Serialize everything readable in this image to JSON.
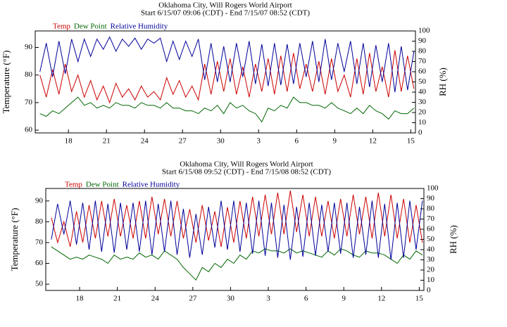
{
  "chart_data": [
    {
      "type": "line",
      "title": "Oklahoma City, Will Rogers World Airport",
      "subtitle": "Start 6/15/07 09:06 (CDT) - End 7/15/07 08:52 (CDT)",
      "ylabel": "Temperature (°F)",
      "y2label": "RH (%)",
      "x": [
        0.75,
        1.25,
        1.75,
        2.25,
        2.75,
        3.25,
        3.75,
        4.25,
        4.75,
        5.25,
        5.75,
        6.25,
        6.75,
        7.25,
        7.75,
        8.25,
        8.75,
        9.25,
        9.75,
        10.25,
        10.75,
        11.25,
        11.75,
        12.25,
        12.75,
        13.25,
        13.75,
        14.25,
        14.75,
        15.25,
        15.75,
        16.25,
        16.75,
        17.25,
        17.75,
        18.25,
        18.75,
        19.25,
        19.75,
        20.25,
        20.75,
        21.25,
        21.75,
        22.25,
        22.75,
        23.25,
        23.75,
        24.25,
        24.75,
        25.25,
        25.75,
        26.25,
        26.75,
        27.25,
        27.75,
        28.25,
        28.75,
        29.25,
        29.75,
        30.25
      ],
      "xlim": [
        0.38,
        30.37
      ],
      "xticks": [
        {
          "value": 3,
          "label": "18"
        },
        {
          "value": 6,
          "label": "21"
        },
        {
          "value": 9,
          "label": "24"
        },
        {
          "value": 12,
          "label": "27"
        },
        {
          "value": 15,
          "label": "30"
        },
        {
          "value": 18,
          "label": "3"
        },
        {
          "value": 21,
          "label": "6"
        },
        {
          "value": 24,
          "label": "9"
        },
        {
          "value": 27,
          "label": "12"
        },
        {
          "value": 30,
          "label": "15"
        }
      ],
      "ylim": [
        59,
        96
      ],
      "yticks": [
        60,
        70,
        80,
        90
      ],
      "y2lim": [
        0,
        100
      ],
      "y2ticks": [
        0,
        10,
        20,
        30,
        40,
        50,
        60,
        70,
        80,
        90,
        100
      ],
      "series": [
        {
          "name": "Temp",
          "color": "#cc0000",
          "values": [
            80,
            72,
            82,
            73,
            84,
            74,
            80,
            72,
            78,
            71,
            76,
            70,
            77,
            72,
            75,
            71,
            76,
            72,
            74,
            71,
            79,
            73,
            78,
            72,
            76,
            71,
            84,
            73,
            85,
            74,
            86,
            73,
            83,
            72,
            84,
            74,
            86,
            73,
            87,
            74,
            88,
            75,
            84,
            74,
            85,
            73,
            86,
            74,
            80,
            72,
            86,
            73,
            88,
            74,
            83,
            72,
            89,
            74,
            87,
            75
          ]
        },
        {
          "name": "Dew Point",
          "color": "#006600",
          "values": [
            66,
            65,
            67,
            66,
            68,
            70,
            72,
            69,
            70,
            68,
            69,
            68,
            70,
            69,
            69,
            68,
            70,
            69,
            69,
            68,
            70,
            68,
            68,
            67,
            67,
            66,
            68,
            67,
            69,
            66,
            70,
            68,
            69,
            67,
            66,
            63,
            68,
            67,
            69,
            68,
            72,
            70,
            70,
            69,
            69,
            68,
            70,
            68,
            67,
            66,
            68,
            66,
            69,
            67,
            66,
            64,
            67,
            66,
            66,
            68
          ]
        },
        {
          "name": "Relative Humidity",
          "color": "#000099",
          "axis": "y2",
          "values": [
            60,
            88,
            55,
            90,
            58,
            92,
            70,
            92,
            75,
            92,
            82,
            94,
            80,
            92,
            85,
            93,
            82,
            92,
            88,
            93,
            70,
            90,
            72,
            90,
            75,
            92,
            52,
            88,
            50,
            85,
            50,
            88,
            55,
            90,
            48,
            87,
            46,
            88,
            47,
            87,
            48,
            88,
            55,
            90,
            50,
            92,
            52,
            88,
            60,
            90,
            48,
            88,
            45,
            86,
            50,
            88,
            40,
            85,
            42,
            80
          ]
        }
      ]
    },
    {
      "type": "line",
      "title": "Oklahoma City, Will Rogers World Airport",
      "subtitle": "Start 6/15/08 09:52 (CDT) - End 7/15/08 08:52 (CDT)",
      "ylabel": "Temperature (°F)",
      "y2label": "RH (%)",
      "x": [
        0.75,
        1.25,
        1.75,
        2.25,
        2.75,
        3.25,
        3.75,
        4.25,
        4.75,
        5.25,
        5.75,
        6.25,
        6.75,
        7.25,
        7.75,
        8.25,
        8.75,
        9.25,
        9.75,
        10.25,
        10.75,
        11.25,
        11.75,
        12.25,
        12.75,
        13.25,
        13.75,
        14.25,
        14.75,
        15.25,
        15.75,
        16.25,
        16.75,
        17.25,
        17.75,
        18.25,
        18.75,
        19.25,
        19.75,
        20.25,
        20.75,
        21.25,
        21.75,
        22.25,
        22.75,
        23.25,
        23.75,
        24.25,
        24.75,
        25.25,
        25.75,
        26.25,
        26.75,
        27.25,
        27.75,
        28.25,
        28.75,
        29.25,
        29.75,
        30.25
      ],
      "xlim": [
        0.31,
        30.37
      ],
      "xticks": [
        {
          "value": 3,
          "label": "18"
        },
        {
          "value": 6,
          "label": "21"
        },
        {
          "value": 9,
          "label": "24"
        },
        {
          "value": 12,
          "label": "27"
        },
        {
          "value": 15,
          "label": "30"
        },
        {
          "value": 18,
          "label": "3"
        },
        {
          "value": 21,
          "label": "6"
        },
        {
          "value": 24,
          "label": "9"
        },
        {
          "value": 27,
          "label": "12"
        },
        {
          "value": 30,
          "label": "15"
        }
      ],
      "ylim": [
        47,
        96
      ],
      "yticks": [
        50,
        60,
        70,
        80,
        90
      ],
      "y2lim": [
        0,
        100
      ],
      "y2ticks": [
        0,
        10,
        20,
        30,
        40,
        50,
        60,
        70,
        80,
        90,
        100
      ],
      "series": [
        {
          "name": "Temp",
          "color": "#cc0000",
          "values": [
            82,
            70,
            80,
            68,
            85,
            70,
            88,
            72,
            90,
            73,
            91,
            73,
            88,
            72,
            90,
            72,
            92,
            74,
            91,
            73,
            90,
            72,
            86,
            70,
            88,
            71,
            85,
            68,
            87,
            70,
            90,
            72,
            92,
            73,
            93,
            74,
            94,
            74,
            95,
            75,
            93,
            73,
            92,
            73,
            90,
            72,
            91,
            73,
            93,
            74,
            92,
            72,
            94,
            73,
            93,
            72,
            91,
            70,
            88,
            70
          ]
        },
        {
          "name": "Dew Point",
          "color": "#006600",
          "values": [
            68,
            66,
            64,
            62,
            63,
            62,
            64,
            63,
            62,
            60,
            64,
            62,
            63,
            62,
            65,
            63,
            64,
            62,
            66,
            64,
            62,
            58,
            55,
            52,
            58,
            56,
            60,
            58,
            62,
            60,
            64,
            62,
            66,
            65,
            67,
            66,
            66,
            65,
            67,
            65,
            66,
            65,
            64,
            63,
            66,
            64,
            67,
            66,
            64,
            63,
            66,
            65,
            65,
            64,
            62,
            60,
            64,
            62,
            66,
            64
          ]
        },
        {
          "name": "Relative Humidity",
          "color": "#000099",
          "axis": "y2",
          "values": [
            50,
            85,
            55,
            88,
            45,
            86,
            40,
            88,
            38,
            85,
            37,
            86,
            40,
            86,
            38,
            88,
            35,
            85,
            38,
            88,
            35,
            80,
            32,
            75,
            35,
            82,
            42,
            88,
            40,
            88,
            38,
            86,
            36,
            88,
            34,
            86,
            32,
            84,
            30,
            82,
            33,
            86,
            34,
            84,
            38,
            86,
            36,
            86,
            32,
            82,
            35,
            88,
            32,
            85,
            30,
            86,
            32,
            88,
            40,
            88
          ]
        }
      ]
    }
  ]
}
